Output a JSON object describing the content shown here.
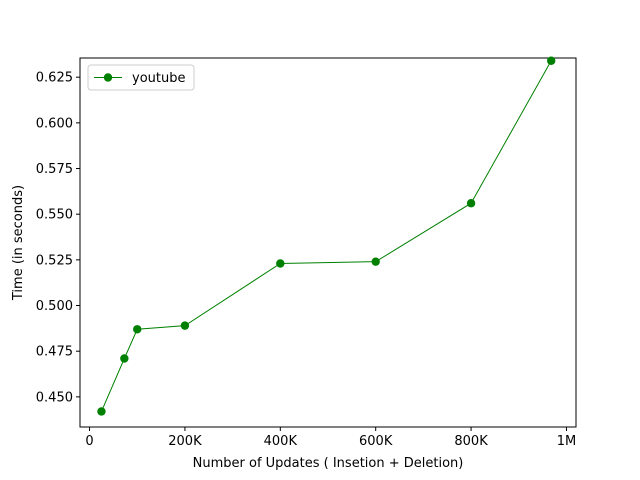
{
  "chart_data": {
    "type": "line",
    "title": "",
    "xlabel": "Number of Updates ( Insetion + Deletion)",
    "ylabel": "Time (in seconds)",
    "xlim": [
      -20000,
      1020000
    ],
    "ylim": [
      0.4335,
      0.6355
    ],
    "xticks": [
      {
        "value": 0,
        "label": "0"
      },
      {
        "value": 200000,
        "label": "200K"
      },
      {
        "value": 400000,
        "label": "400K"
      },
      {
        "value": 600000,
        "label": "600K"
      },
      {
        "value": 800000,
        "label": "800K"
      },
      {
        "value": 1000000,
        "label": "1M"
      }
    ],
    "yticks": [
      {
        "value": 0.45,
        "label": "0.450"
      },
      {
        "value": 0.475,
        "label": "0.475"
      },
      {
        "value": 0.5,
        "label": "0.500"
      },
      {
        "value": 0.525,
        "label": "0.525"
      },
      {
        "value": 0.55,
        "label": "0.550"
      },
      {
        "value": 0.575,
        "label": "0.575"
      },
      {
        "value": 0.6,
        "label": "0.600"
      },
      {
        "value": 0.625,
        "label": "0.625"
      }
    ],
    "grid": false,
    "legend_position": "upper-left",
    "series": [
      {
        "name": "youtube",
        "color": "#008000",
        "marker": "circle",
        "x": [
          25000,
          73000,
          100000,
          200000,
          400000,
          600000,
          800000,
          968000
        ],
        "y": [
          0.442,
          0.471,
          0.487,
          0.489,
          0.523,
          0.524,
          0.556,
          0.634
        ]
      }
    ]
  }
}
